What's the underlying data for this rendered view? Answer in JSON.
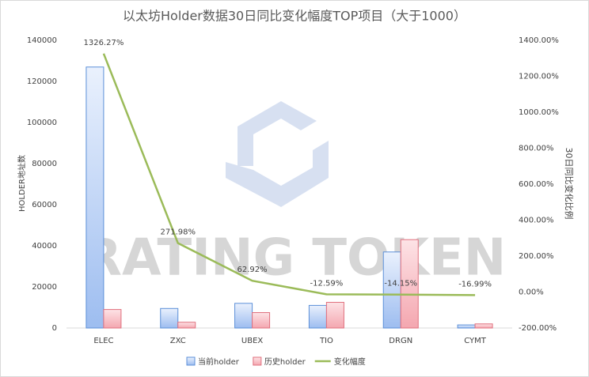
{
  "chart_data": {
    "type": "bar-line",
    "title": "以太坊Holder数据30日同比变化幅度TOP项目（大于1000）",
    "watermark": "RATING TOKEN",
    "y_label": "HOLDER地址数",
    "y2_label": "30日同比变化比例",
    "categories": [
      "ELEC",
      "ZXC",
      "UBEX",
      "TIO",
      "DRGN",
      "CYMT"
    ],
    "series": [
      {
        "name": "当前holder",
        "type": "bar",
        "color": "#5b8fd8",
        "values": [
          127000,
          9500,
          12000,
          11000,
          37000,
          1500
        ]
      },
      {
        "name": "历史holder",
        "type": "bar",
        "color": "#e0707e",
        "values": [
          9000,
          2800,
          7500,
          12500,
          43000,
          2000
        ]
      },
      {
        "name": "变化幅度",
        "type": "line",
        "axis": "y2",
        "color": "#9bbb59",
        "values": [
          1326.27,
          271.98,
          62.92,
          -12.59,
          -14.15,
          -16.99
        ],
        "value_labels": [
          "1326.27%",
          "271.98%",
          "62.92%",
          "-12.59%",
          "-14.15%",
          "-16.99%"
        ]
      }
    ],
    "ylim": [
      0,
      140000
    ],
    "yticks": [
      0,
      20000,
      40000,
      60000,
      80000,
      100000,
      120000,
      140000
    ],
    "y2lim": [
      -200,
      1400
    ],
    "y2ticks": [
      {
        "value": -200,
        "label": "-200.00%"
      },
      {
        "value": 0,
        "label": "0.00%"
      },
      {
        "value": 200,
        "label": "200.00%"
      },
      {
        "value": 400,
        "label": "400.00%"
      },
      {
        "value": 600,
        "label": "600.00%"
      },
      {
        "value": 800,
        "label": "800.00%"
      },
      {
        "value": 1000,
        "label": "1000.00%"
      },
      {
        "value": 1200,
        "label": "1200.00%"
      },
      {
        "value": 1400,
        "label": "1400.00%"
      }
    ]
  }
}
